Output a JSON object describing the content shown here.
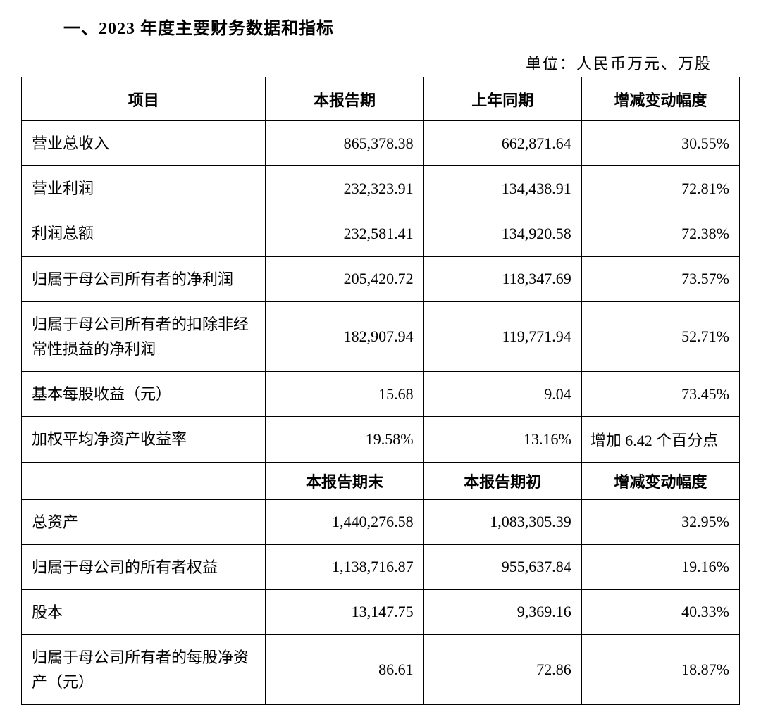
{
  "title": "一、2023 年度主要财务数据和指标",
  "unit": "单位：人民币万元、万股",
  "table": {
    "type": "table",
    "border_color": "#000000",
    "background_color": "#ffffff",
    "text_color": "#000000",
    "font_size_pt": 16,
    "header_font_weight": "bold",
    "columns_top": [
      "项目",
      "本报告期",
      "上年同期",
      "增减变动幅度"
    ],
    "columns_mid": [
      "本报告期末",
      "本报告期初",
      "增减变动幅度"
    ],
    "column_widths_pct": [
      34,
      22,
      22,
      22
    ],
    "rows_top": [
      {
        "label": "营业总收入",
        "current": "865,378.38",
        "prior": "662,871.64",
        "change": "30.55%"
      },
      {
        "label": "营业利润",
        "current": "232,323.91",
        "prior": "134,438.91",
        "change": "72.81%"
      },
      {
        "label": "利润总额",
        "current": "232,581.41",
        "prior": "134,920.58",
        "change": "72.38%"
      },
      {
        "label": "归属于母公司所有者的净利润",
        "current": "205,420.72",
        "prior": "118,347.69",
        "change": "73.57%"
      },
      {
        "label": "归属于母公司所有者的扣除非经常性损益的净利润",
        "current": "182,907.94",
        "prior": "119,771.94",
        "change": "52.71%",
        "tall": true
      },
      {
        "label": "基本每股收益（元）",
        "current": "15.68",
        "prior": "9.04",
        "change": "73.45%"
      },
      {
        "label": "加权平均净资产收益率",
        "current": "19.58%",
        "prior": "13.16%",
        "change": "增加 6.42 个百分点",
        "change_is_text": true
      }
    ],
    "rows_bottom": [
      {
        "label": "总资产",
        "current": "1,440,276.58",
        "prior": "1,083,305.39",
        "change": "32.95%"
      },
      {
        "label": "归属于母公司的所有者权益",
        "current": "1,138,716.87",
        "prior": "955,637.84",
        "change": "19.16%"
      },
      {
        "label": "股本",
        "current": "13,147.75",
        "prior": "9,369.16",
        "change": "40.33%"
      },
      {
        "label": "归属于母公司所有者的每股净资产（元）",
        "current": "86.61",
        "prior": "72.86",
        "change": "18.87%",
        "tall": true
      }
    ]
  }
}
